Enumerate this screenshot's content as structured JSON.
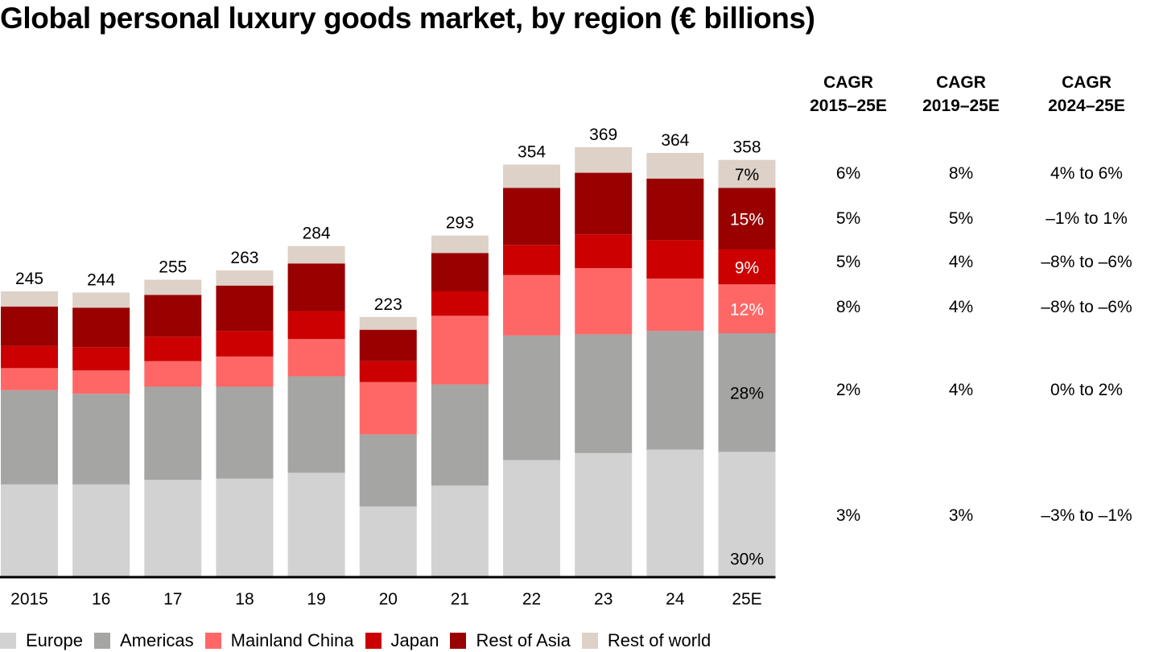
{
  "title": "Global personal luxury goods market, by region (€ billions)",
  "chart_data": {
    "type": "bar",
    "stacked": true,
    "title": "Global personal luxury goods market, by region (€ billions)",
    "xlabel": "",
    "ylabel": "€ billions",
    "ylim": [
      0,
      375
    ],
    "grid": false,
    "legend_position": "bottom",
    "categories": [
      "2015",
      "16",
      "17",
      "18",
      "19",
      "20",
      "21",
      "22",
      "23",
      "24",
      "25E"
    ],
    "totals": [
      245,
      244,
      255,
      263,
      284,
      223,
      293,
      354,
      369,
      364,
      358
    ],
    "series": [
      {
        "name": "Europe",
        "color": "#d2d2d2",
        "values": [
          79,
          79,
          83,
          84,
          89,
          60,
          78,
          100,
          106,
          109,
          107
        ]
      },
      {
        "name": "Americas",
        "color": "#a5a5a4",
        "values": [
          81,
          78,
          80,
          79,
          83,
          62,
          87,
          107,
          102,
          102,
          102
        ]
      },
      {
        "name": "Mainland China",
        "color": "#ff6766",
        "values": [
          19,
          20,
          22,
          26,
          32,
          45,
          59,
          52,
          57,
          45,
          42
        ]
      },
      {
        "name": "Japan",
        "color": "#cc0000",
        "values": [
          19,
          20,
          21,
          22,
          24,
          18,
          21,
          26,
          29,
          33,
          30
        ]
      },
      {
        "name": "Rest of Asia",
        "color": "#990000",
        "values": [
          34,
          34,
          36,
          39,
          41,
          27,
          33,
          49,
          53,
          53,
          53
        ]
      },
      {
        "name": "Rest of world",
        "color": "#ddd1c8",
        "values": [
          13,
          13,
          13,
          13,
          15,
          11,
          15,
          20,
          22,
          22,
          24
        ]
      }
    ],
    "share_labels_25E": [
      "30%",
      "28%",
      "12%",
      "9%",
      "15%",
      "7%"
    ],
    "share_label_colors": [
      "#000000",
      "#000000",
      "#ffffff",
      "#ffffff",
      "#ffffff",
      "#000000"
    ]
  },
  "cagr": {
    "headers": [
      {
        "line1": "CAGR",
        "line2": "2015–25E"
      },
      {
        "line1": "CAGR",
        "line2": "2019–25E"
      },
      {
        "line1": "CAGR",
        "line2": "2024–25E"
      }
    ],
    "rows": [
      {
        "region": "Rest of world",
        "values": [
          "6%",
          "8%",
          "4% to 6%"
        ]
      },
      {
        "region": "Rest of Asia",
        "values": [
          "5%",
          "5%",
          "–1% to 1%"
        ]
      },
      {
        "region": "Japan",
        "values": [
          "5%",
          "4%",
          "–8% to –6%"
        ]
      },
      {
        "region": "Mainland China",
        "values": [
          "8%",
          "4%",
          "–8% to –6%"
        ]
      },
      {
        "region": "Americas",
        "values": [
          "2%",
          "4%",
          "0% to 2%"
        ]
      },
      {
        "region": "Europe",
        "values": [
          "3%",
          "3%",
          "–3% to –1%"
        ]
      }
    ]
  },
  "legend": [
    {
      "label": "Europe",
      "color": "#d2d2d2"
    },
    {
      "label": "Americas",
      "color": "#a5a5a4"
    },
    {
      "label": "Mainland China",
      "color": "#ff6766"
    },
    {
      "label": "Japan",
      "color": "#cc0000"
    },
    {
      "label": "Rest of Asia",
      "color": "#990000"
    },
    {
      "label": "Rest of world",
      "color": "#ddd1c8"
    }
  ]
}
